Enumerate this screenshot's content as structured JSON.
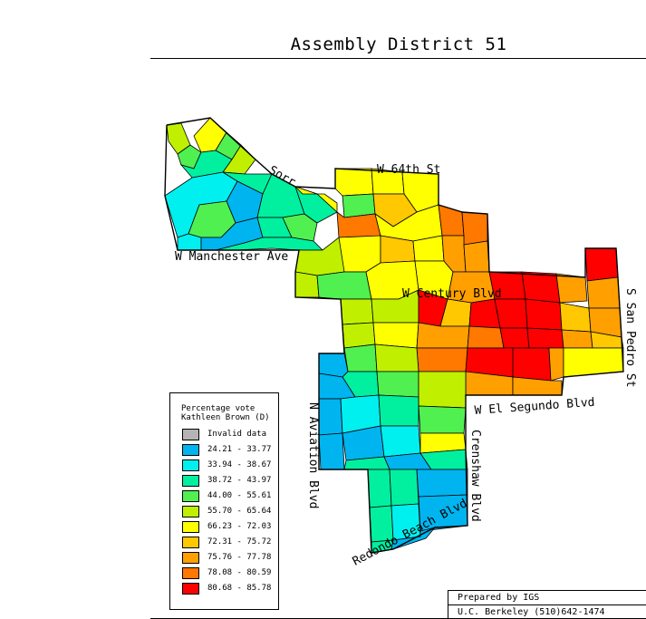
{
  "title": "Assembly District 51",
  "legend": {
    "title_line1": "Percentage vote",
    "title_line2": "Kathleen Brown (D)",
    "items": [
      {
        "label": "Invalid data",
        "color": "#b4b4b4"
      },
      {
        "label": "24.21 - 33.77",
        "color": "#00b4f0"
      },
      {
        "label": "33.94 - 38.67",
        "color": "#00f0f0"
      },
      {
        "label": "38.72 - 43.97",
        "color": "#00f0a0"
      },
      {
        "label": "44.00 - 55.61",
        "color": "#50f050"
      },
      {
        "label": "55.70 - 65.64",
        "color": "#c0f000"
      },
      {
        "label": "66.23 - 72.03",
        "color": "#ffff00"
      },
      {
        "label": "72.31 - 75.72",
        "color": "#ffc800"
      },
      {
        "label": "75.76 - 77.78",
        "color": "#ffa000"
      },
      {
        "label": "78.08 - 80.59",
        "color": "#ff7800"
      },
      {
        "label": "80.68 - 85.78",
        "color": "#ff0000"
      }
    ]
  },
  "streets": {
    "sorr": "Sorr",
    "w64": "W 64th St",
    "manchester": "W Manchester Ave",
    "century": "W Century Blvd",
    "san_pedro": "S San Pedro St",
    "el_segundo": "W El Segundo Blvd",
    "aviation": "N Aviation Blvd",
    "crenshaw": "Crenshaw Blvd",
    "redondo": "Redondo Beach Blvd"
  },
  "credit": {
    "line1": "Prepared by IGS",
    "line2": "U.C. Berkeley (510)642-1474"
  }
}
